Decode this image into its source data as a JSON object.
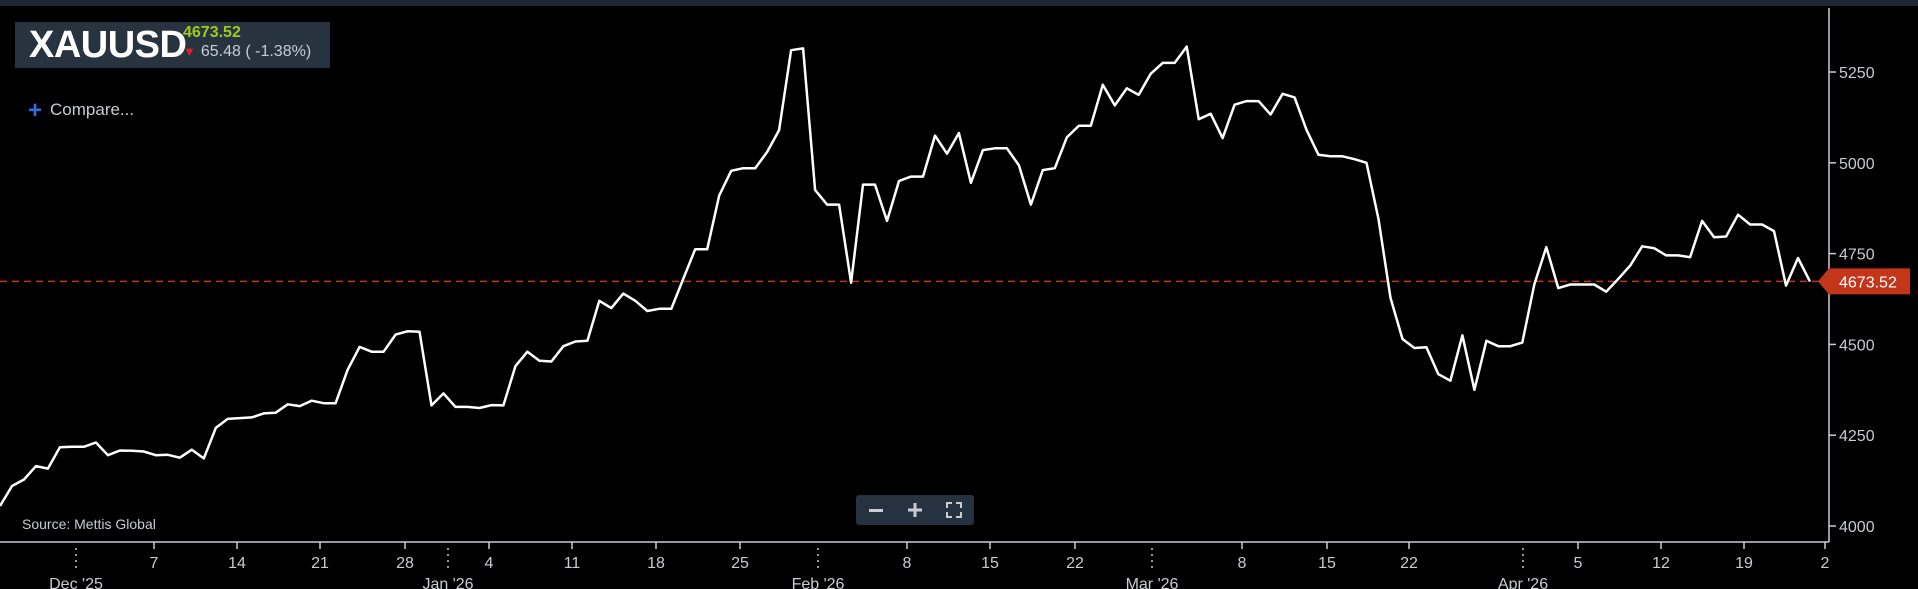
{
  "header": {
    "symbol": "XAUUSD",
    "price": "4673.52",
    "change": "65.48 ( -1.38%)"
  },
  "compare_label": "Compare...",
  "source_label": "Source: Mettis Global",
  "colors": {
    "background": "#000000",
    "line": "#ffffff",
    "up_green": "#9ccc1e",
    "down_red": "#e02020",
    "last_price_tag": "#c4361a",
    "reference_line": "#c4361a"
  },
  "icons": {
    "compare": "plus-icon",
    "change_direction": "down-arrow-icon",
    "zoom_out": "minus-icon",
    "zoom_in": "plus-icon",
    "fullscreen": "fullscreen-icon"
  },
  "chart_data": {
    "type": "line",
    "title": "XAUUSD",
    "xlabel": "",
    "ylabel": "",
    "ylim": [
      3960,
      5410
    ],
    "y_ticks": [
      4000,
      4250,
      4500,
      4750,
      5000,
      5250
    ],
    "y_axis_position": "right",
    "grid": false,
    "last_price": 4673.52,
    "last_price_label": "4673.52",
    "x_tick_labels": [
      "Dec '25",
      "7",
      "14",
      "21",
      "28",
      "Jan '26",
      "4",
      "11",
      "18",
      "25",
      "Feb '26",
      "8",
      "15",
      "22",
      "Mar '26",
      "8",
      "15",
      "22",
      "Apr '26",
      "5",
      "12",
      "19",
      "2"
    ],
    "series": [
      {
        "name": "XAUUSD",
        "values": [
          4055,
          4110,
          4128,
          4165,
          4158,
          4217,
          4218,
          4218,
          4230,
          4195,
          4208,
          4207,
          4205,
          4195,
          4196,
          4188,
          4210,
          4186,
          4270,
          4295,
          4297,
          4299,
          4310,
          4312,
          4335,
          4330,
          4345,
          4338,
          4338,
          4430,
          4493,
          4480,
          4480,
          4527,
          4536,
          4535,
          4332,
          4365,
          4328,
          4328,
          4325,
          4333,
          4332,
          4440,
          4480,
          4455,
          4453,
          4495,
          4508,
          4510,
          4620,
          4600,
          4640,
          4620,
          4592,
          4598,
          4598,
          4680,
          4762,
          4762,
          4910,
          4978,
          4985,
          4985,
          5030,
          5090,
          5310,
          5315,
          4925,
          4885,
          4885,
          4670,
          4940,
          4940,
          4840,
          4950,
          4962,
          4962,
          5075,
          5025,
          5082,
          4945,
          5035,
          5040,
          5040,
          4993,
          4885,
          4980,
          4985,
          5070,
          5102,
          5102,
          5215,
          5158,
          5205,
          5187,
          5245,
          5275,
          5275,
          5320,
          5120,
          5135,
          5068,
          5160,
          5170,
          5170,
          5133,
          5190,
          5180,
          5090,
          5022,
          5018,
          5018,
          5010,
          5000,
          4845,
          4628,
          4515,
          4490,
          4492,
          4418,
          4400,
          4525,
          4375,
          4510,
          4495,
          4495,
          4505,
          4665,
          4768,
          4655,
          4665,
          4665,
          4665,
          4645,
          4680,
          4717,
          4770,
          4765,
          4745,
          4745,
          4740,
          4840,
          4795,
          4797,
          4857,
          4830,
          4830,
          4812,
          4662,
          4738,
          4673
        ]
      }
    ]
  }
}
